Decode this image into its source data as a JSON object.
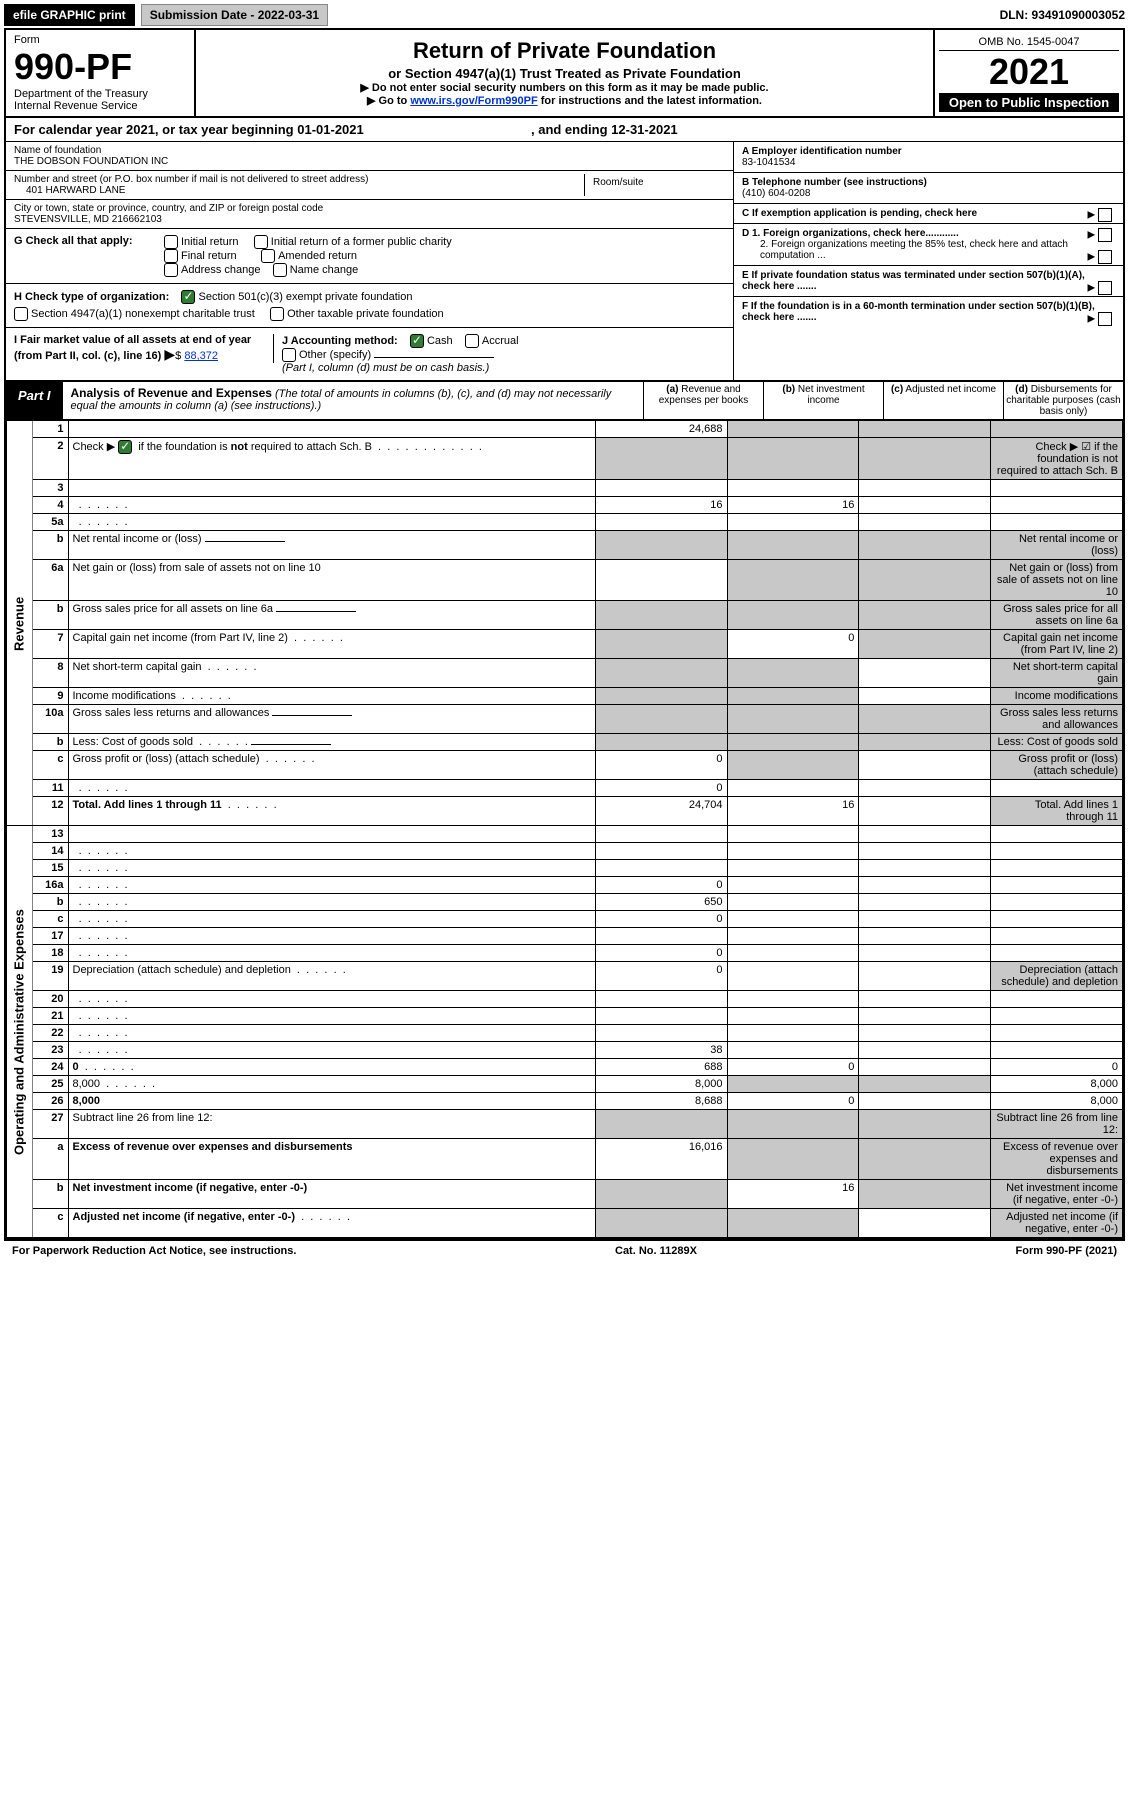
{
  "topbar": {
    "efile": "efile GRAPHIC print",
    "submission": "Submission Date - 2022-03-31",
    "dln": "DLN: 93491090003052"
  },
  "header": {
    "form_label": "Form",
    "form_no": "990-PF",
    "dept": "Department of the Treasury",
    "irs": "Internal Revenue Service",
    "title": "Return of Private Foundation",
    "subtitle": "or Section 4947(a)(1) Trust Treated as Private Foundation",
    "instr1": "▶ Do not enter social security numbers on this form as it may be made public.",
    "instr2_pre": "▶ Go to ",
    "instr2_link": "www.irs.gov/Form990PF",
    "instr2_post": " for instructions and the latest information.",
    "omb": "OMB No. 1545-0047",
    "year": "2021",
    "open": "Open to Public Inspection"
  },
  "cal": {
    "text_pre": "For calendar year 2021, or tax year beginning ",
    "begin": "01-01-2021",
    "mid": " , and ending ",
    "end": "12-31-2021"
  },
  "info": {
    "name_lbl": "Name of foundation",
    "name": "THE DOBSON FOUNDATION INC",
    "addr_lbl": "Number and street (or P.O. box number if mail is not delivered to street address)",
    "addr": "401 HARWARD LANE",
    "room_lbl": "Room/suite",
    "city_lbl": "City or town, state or province, country, and ZIP or foreign postal code",
    "city": "STEVENSVILLE, MD  216662103",
    "a_lbl": "A Employer identification number",
    "a_val": "83-1041534",
    "b_lbl": "B Telephone number (see instructions)",
    "b_val": "(410) 604-0208",
    "c_lbl": "C  If exemption application is pending, check here",
    "d1": "D 1. Foreign organizations, check here............",
    "d2": "2. Foreign organizations meeting the 85% test, check here and attach computation ...",
    "e": "E  If private foundation status was terminated under section 507(b)(1)(A), check here .......",
    "f": "F  If the foundation is in a 60-month termination under section 507(b)(1)(B), check here .......",
    "g_lbl": "G Check all that apply:",
    "g_opts": [
      "Initial return",
      "Initial return of a former public charity",
      "Final return",
      "Amended return",
      "Address change",
      "Name change"
    ],
    "h_lbl": "H Check type of organization:",
    "h1": "Section 501(c)(3) exempt private foundation",
    "h2": "Section 4947(a)(1) nonexempt charitable trust",
    "h3": "Other taxable private foundation",
    "i_lbl": "I Fair market value of all assets at end of year (from Part II, col. (c), line 16)",
    "i_val": "88,372",
    "j_lbl": "J Accounting method:",
    "j_cash": "Cash",
    "j_acc": "Accrual",
    "j_other": "Other (specify)",
    "j_note": "(Part I, column (d) must be on cash basis.)"
  },
  "part1": {
    "tag": "Part I",
    "title": "Analysis of Revenue and Expenses",
    "title_note": "(The total of amounts in columns (b), (c), and (d) may not necessarily equal the amounts in column (a) (see instructions).)",
    "col_a": "(a)",
    "col_a_txt": "Revenue and expenses per books",
    "col_b": "(b)",
    "col_b_txt": "Net investment income",
    "col_c": "(c)",
    "col_c_txt": "Adjusted net income",
    "col_d": "(d)",
    "col_d_txt": "Disbursements for charitable purposes (cash basis only)"
  },
  "side": {
    "rev": "Revenue",
    "exp": "Operating and Administrative Expenses"
  },
  "rows": [
    {
      "n": "1",
      "d": "",
      "a": "24,688",
      "b": "",
      "c": "",
      "gray_bcd": true
    },
    {
      "n": "2",
      "d": "Check ▶ ☑ if the foundation is not required to attach Sch. B",
      "dots": true,
      "gray_all": true
    },
    {
      "n": "3",
      "d": "",
      "a": "",
      "b": "",
      "c": ""
    },
    {
      "n": "4",
      "d": "",
      "dots": true,
      "a": "16",
      "b": "16",
      "c": ""
    },
    {
      "n": "5a",
      "d": "",
      "dots": true,
      "a": "",
      "b": "",
      "c": ""
    },
    {
      "n": "b",
      "d": "Net rental income or (loss)",
      "under": true,
      "gray_all": true
    },
    {
      "n": "6a",
      "d": "Net gain or (loss) from sale of assets not on line 10",
      "a": "",
      "gray_bcd": true
    },
    {
      "n": "b",
      "d": "Gross sales price for all assets on line 6a",
      "under": true,
      "gray_all": true
    },
    {
      "n": "7",
      "d": "Capital gain net income (from Part IV, line 2)",
      "dots": true,
      "gray_a": true,
      "b": "0",
      "gray_cd": true
    },
    {
      "n": "8",
      "d": "Net short-term capital gain",
      "dots": true,
      "gray_ab": true,
      "c": "",
      "gray_d": true
    },
    {
      "n": "9",
      "d": "Income modifications",
      "dots": true,
      "gray_ab": true,
      "c": "",
      "gray_d": true
    },
    {
      "n": "10a",
      "d": "Gross sales less returns and allowances",
      "under": true,
      "gray_all": true
    },
    {
      "n": "b",
      "d": "Less: Cost of goods sold",
      "dots": true,
      "under": true,
      "gray_all": true
    },
    {
      "n": "c",
      "d": "Gross profit or (loss) (attach schedule)",
      "dots": true,
      "a": "0",
      "gray_b": true,
      "c": "",
      "gray_d": true
    },
    {
      "n": "11",
      "d": "",
      "dots": true,
      "a": "0",
      "b": "",
      "c": ""
    },
    {
      "n": "12",
      "d": "Total. Add lines 1 through 11",
      "dots": true,
      "bold": true,
      "a": "24,704",
      "b": "16",
      "c": "",
      "gray_d": true
    }
  ],
  "exp_rows": [
    {
      "n": "13",
      "d": "",
      "a": "",
      "b": "",
      "c": ""
    },
    {
      "n": "14",
      "d": "",
      "dots": true,
      "a": "",
      "b": "",
      "c": ""
    },
    {
      "n": "15",
      "d": "",
      "dots": true,
      "a": "",
      "b": "",
      "c": ""
    },
    {
      "n": "16a",
      "d": "",
      "dots": true,
      "a": "0",
      "b": "",
      "c": ""
    },
    {
      "n": "b",
      "d": "",
      "dots": true,
      "a": "650",
      "b": "",
      "c": ""
    },
    {
      "n": "c",
      "d": "",
      "dots": true,
      "a": "0",
      "b": "",
      "c": ""
    },
    {
      "n": "17",
      "d": "",
      "dots": true,
      "a": "",
      "b": "",
      "c": ""
    },
    {
      "n": "18",
      "d": "",
      "dots": true,
      "a": "0",
      "b": "",
      "c": ""
    },
    {
      "n": "19",
      "d": "Depreciation (attach schedule) and depletion",
      "dots": true,
      "a": "0",
      "b": "",
      "c": "",
      "gray_d": true
    },
    {
      "n": "20",
      "d": "",
      "dots": true,
      "a": "",
      "b": "",
      "c": ""
    },
    {
      "n": "21",
      "d": "",
      "dots": true,
      "a": "",
      "b": "",
      "c": ""
    },
    {
      "n": "22",
      "d": "",
      "dots": true,
      "a": "",
      "b": "",
      "c": ""
    },
    {
      "n": "23",
      "d": "",
      "dots": true,
      "a": "38",
      "b": "",
      "c": ""
    },
    {
      "n": "24",
      "d": "0",
      "dots": true,
      "bold": true,
      "a": "688",
      "b": "0",
      "c": ""
    },
    {
      "n": "25",
      "d": "8,000",
      "dots": true,
      "a": "8,000",
      "gray_bc": true
    },
    {
      "n": "26",
      "d": "8,000",
      "bold": true,
      "a": "8,688",
      "b": "0",
      "c": ""
    },
    {
      "n": "27",
      "d": "Subtract line 26 from line 12:",
      "gray_all": true
    },
    {
      "n": "a",
      "d": "Excess of revenue over expenses and disbursements",
      "bold": true,
      "a": "16,016",
      "gray_bcd": true
    },
    {
      "n": "b",
      "d": "Net investment income (if negative, enter -0-)",
      "bold": true,
      "gray_a": true,
      "b": "16",
      "gray_cd": true
    },
    {
      "n": "c",
      "d": "Adjusted net income (if negative, enter -0-)",
      "dots": true,
      "bold": true,
      "gray_ab": true,
      "c": "",
      "gray_d": true
    }
  ],
  "footer": {
    "left": "For Paperwork Reduction Act Notice, see instructions.",
    "mid": "Cat. No. 11289X",
    "right": "Form 990-PF (2021)"
  },
  "colors": {
    "link": "#0033cc",
    "gray_cell": "#c8c8c8",
    "check_green": "#2e7d32"
  }
}
